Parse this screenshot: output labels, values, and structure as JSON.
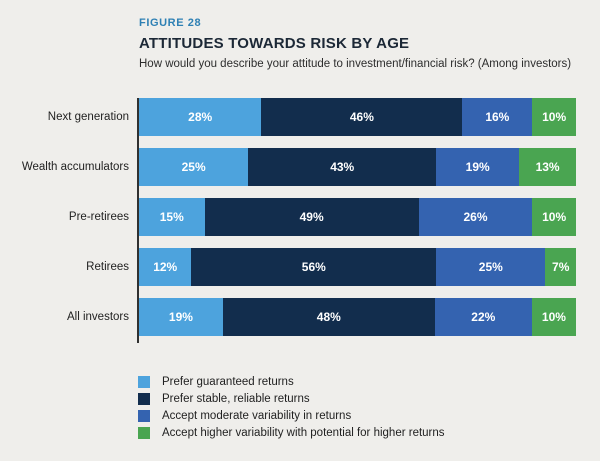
{
  "header": {
    "figure_label": "FIGURE 28",
    "title": "ATTITUDES TOWARDS RISK BY AGE",
    "subtitle": "How would you describe your attitude to investment/financial risk? (Among investors)"
  },
  "colors": {
    "background": "#efeeeb",
    "figure_label": "#2e80b4",
    "title_text": "#1c2836",
    "axis_line": "#303030",
    "value_text": "#ffffff",
    "series": [
      "#4da3dd",
      "#122d4d",
      "#3463b0",
      "#4aa551"
    ]
  },
  "chart_data": {
    "type": "bar",
    "orientation": "horizontal",
    "stacked": true,
    "title": "ATTITUDES TOWARDS RISK BY AGE",
    "subtitle": "How would you describe your attitude to investment/financial risk? (Among investors)",
    "categories": [
      "Next generation",
      "Wealth accumulators",
      "Pre-retirees",
      "Retirees",
      "All investors"
    ],
    "series": [
      {
        "name": "Prefer guaranteed returns",
        "color": "#4da3dd",
        "values": [
          28,
          25,
          15,
          12,
          19
        ]
      },
      {
        "name": "Prefer stable, reliable returns",
        "color": "#122d4d",
        "values": [
          46,
          43,
          49,
          56,
          48
        ]
      },
      {
        "name": "Accept moderate variability in returns",
        "color": "#3463b0",
        "values": [
          16,
          19,
          26,
          25,
          22
        ]
      },
      {
        "name": "Accept higher variability with potential for higher returns",
        "color": "#4aa551",
        "values": [
          10,
          13,
          10,
          7,
          10
        ]
      }
    ],
    "value_suffix": "%",
    "xlim": [
      0,
      100
    ],
    "grid": false,
    "legend_position": "bottom"
  },
  "legend": {
    "items": [
      {
        "label": "Prefer guaranteed returns",
        "color": "#4da3dd"
      },
      {
        "label": "Prefer stable, reliable returns",
        "color": "#122d4d"
      },
      {
        "label": "Accept moderate variability in returns",
        "color": "#3463b0"
      },
      {
        "label": "Accept higher variability with potential for higher returns",
        "color": "#4aa551"
      }
    ]
  }
}
